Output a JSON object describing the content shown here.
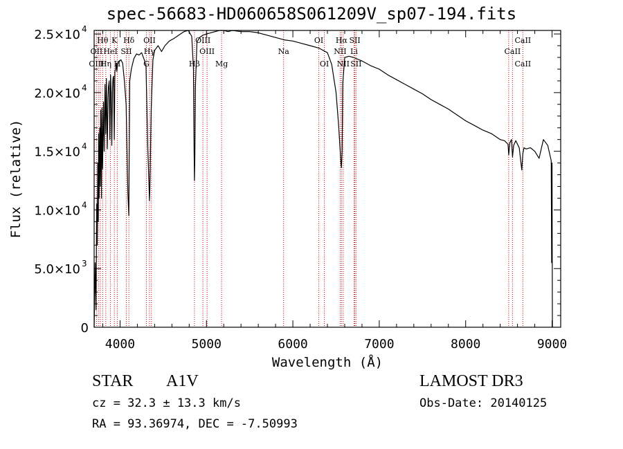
{
  "chart_data": {
    "type": "line",
    "title": "spec-56683-HD060658S061209V_sp07-194.fits",
    "xlabel": "Wavelength (Å)",
    "ylabel": "Flux (relative)",
    "xlim": [
      3700,
      9100
    ],
    "ylim": [
      0,
      25300
    ],
    "x_ticks": [
      4000,
      5000,
      6000,
      7000,
      8000,
      9000
    ],
    "x_tick_labels": [
      "4000",
      "5000",
      "6000",
      "7000",
      "8000",
      "9000"
    ],
    "y_ticks": [
      {
        "value": 0,
        "mantissa": "0",
        "exponent": ""
      },
      {
        "value": 5000,
        "mantissa": "5.0×10",
        "exponent": "3"
      },
      {
        "value": 10000,
        "mantissa": "1.0×10",
        "exponent": "4"
      },
      {
        "value": 15000,
        "mantissa": "1.5×10",
        "exponent": "4"
      },
      {
        "value": 20000,
        "mantissa": "2.0×10",
        "exponent": "4"
      },
      {
        "value": 25000,
        "mantissa": "2.5×10",
        "exponent": "4"
      }
    ],
    "series": [
      {
        "name": "flux",
        "x": [
          3700,
          3712,
          3722,
          3730,
          3736,
          3742,
          3748,
          3752,
          3758,
          3765,
          3771,
          3776,
          3785,
          3790,
          3798,
          3808,
          3816,
          3826,
          3835,
          3842,
          3852,
          3860,
          3866,
          3874,
          3882,
          3890,
          3897,
          3904,
          3912,
          3918,
          3925,
          3933,
          3940,
          3948,
          3958,
          3962,
          3970,
          3978,
          3990,
          4010,
          4030,
          4050,
          4070,
          4090,
          4101,
          4112,
          4130,
          4160,
          4190,
          4220,
          4250,
          4280,
          4300,
          4320,
          4335,
          4340,
          4345,
          4360,
          4380,
          4400,
          4440,
          4480,
          4520,
          4570,
          4620,
          4680,
          4740,
          4790,
          4830,
          4850,
          4856,
          4861,
          4866,
          4872,
          4890,
          4920,
          4960,
          5000,
          5050,
          5100,
          5150,
          5200,
          5250,
          5300,
          5400,
          5500,
          5600,
          5700,
          5800,
          5900,
          6000,
          6100,
          6200,
          6300,
          6400,
          6450,
          6500,
          6530,
          6550,
          6556,
          6563,
          6570,
          6578,
          6600,
          6650,
          6700,
          6800,
          6900,
          7000,
          7100,
          7200,
          7300,
          7400,
          7500,
          7600,
          7700,
          7800,
          7900,
          8000,
          8100,
          8200,
          8300,
          8400,
          8450,
          8490,
          8498,
          8510,
          8530,
          8542,
          8555,
          8580,
          8620,
          8650,
          8662,
          8675,
          8700,
          8750,
          8800,
          8850,
          8900,
          8950,
          8990,
          8995,
          9000,
          9004
        ],
        "y": [
          0,
          5500,
          1500,
          10500,
          7000,
          14000,
          9000,
          16500,
          11000,
          17000,
          12000,
          18500,
          11000,
          18700,
          13500,
          19200,
          15000,
          20700,
          16500,
          21200,
          15200,
          19500,
          20500,
          21000,
          16000,
          21500,
          20000,
          15500,
          20200,
          21200,
          21400,
          16000,
          21800,
          22000,
          22500,
          21800,
          22400,
          22600,
          22700,
          22800,
          22500,
          21000,
          19000,
          11500,
          9500,
          21000,
          22000,
          22900,
          23300,
          23200,
          23400,
          22800,
          22300,
          15500,
          12000,
          10800,
          11800,
          18500,
          22800,
          23600,
          24000,
          23500,
          24000,
          24400,
          24600,
          24900,
          25200,
          25300,
          24800,
          22000,
          15500,
          12500,
          14500,
          20500,
          24300,
          24700,
          24900,
          25000,
          25100,
          25200,
          25300,
          25300,
          25200,
          25300,
          25200,
          25200,
          25100,
          24900,
          24700,
          24500,
          24400,
          24200,
          24000,
          23800,
          23400,
          22400,
          20000,
          17200,
          14800,
          14000,
          13600,
          15000,
          20800,
          23000,
          23100,
          23000,
          22700,
          22300,
          22000,
          21500,
          21100,
          20700,
          20300,
          19900,
          19400,
          19000,
          18600,
          18100,
          17600,
          17200,
          16800,
          16500,
          16000,
          15900,
          15600,
          14700,
          15700,
          16000,
          14500,
          15500,
          15900,
          15300,
          13400,
          14800,
          15300,
          15200,
          15300,
          15000,
          14400,
          16000,
          15500,
          14200,
          5500,
          14000,
          0
        ]
      }
    ],
    "line_markers": [
      {
        "label": "Hθ",
        "wavelength": 3798,
        "row": 0
      },
      {
        "label": "K",
        "wavelength": 3934,
        "row": 0
      },
      {
        "label": "Hδ",
        "wavelength": 4102,
        "row": 0
      },
      {
        "label": "OII",
        "wavelength": 4341,
        "row": 0
      },
      {
        "label": "OIII",
        "wavelength": 4959,
        "row": 0
      },
      {
        "label": "OI",
        "wavelength": 6300,
        "row": 0
      },
      {
        "label": "Hα",
        "wavelength": 6563,
        "row": 0
      },
      {
        "label": "SII",
        "wavelength": 6717,
        "row": 0
      },
      {
        "label": "CaII",
        "wavelength": 8662,
        "row": 0
      },
      {
        "label": "OII",
        "wavelength": 3727,
        "row": 1
      },
      {
        "label": "HeI",
        "wavelength": 3889,
        "row": 1
      },
      {
        "label": "SII",
        "wavelength": 4072,
        "row": 1
      },
      {
        "label": "Hγ",
        "wavelength": 4340,
        "row": 1
      },
      {
        "label": "OIII",
        "wavelength": 5007,
        "row": 1
      },
      {
        "label": "Na",
        "wavelength": 5893,
        "row": 1
      },
      {
        "label": "NII",
        "wavelength": 6548,
        "row": 1
      },
      {
        "label": "Li",
        "wavelength": 6708,
        "row": 1
      },
      {
        "label": "CaII",
        "wavelength": 8542,
        "row": 1
      },
      {
        "label": "OIII",
        "wavelength": 3727,
        "row": 2
      },
      {
        "label": "Hη",
        "wavelength": 3835,
        "row": 2
      },
      {
        "label": "H",
        "wavelength": 3969,
        "row": 2
      },
      {
        "label": "G",
        "wavelength": 4305,
        "row": 2
      },
      {
        "label": "Hβ",
        "wavelength": 4861,
        "row": 2
      },
      {
        "label": "Mg",
        "wavelength": 5175,
        "row": 2
      },
      {
        "label": "OI",
        "wavelength": 6364,
        "row": 2
      },
      {
        "label": "NII",
        "wavelength": 6583,
        "row": 2
      },
      {
        "label": "SII",
        "wavelength": 6731,
        "row": 2
      },
      {
        "label": "CaII",
        "wavelength": 8662,
        "row": 2
      }
    ],
    "marker_lines": [
      3727,
      3750,
      3771,
      3798,
      3835,
      3889,
      3934,
      3969,
      4072,
      4102,
      4305,
      4341,
      4363,
      4861,
      4959,
      5007,
      5175,
      5893,
      6300,
      6364,
      6548,
      6563,
      6583,
      6708,
      6717,
      6731,
      8498,
      8542,
      8662
    ]
  },
  "info": {
    "obj_class": "STAR",
    "obj_subclass": "A1V",
    "survey": "LAMOST DR3",
    "cz": "cz = 32.3 ± 13.3 km/s",
    "obs_date": "Obs-Date: 20140125",
    "radec": "RA =  93.36974, DEC =  -7.50993"
  },
  "colors": {
    "marker_line": "#cc0000",
    "spectrum": "#000000",
    "axes": "#000000"
  }
}
